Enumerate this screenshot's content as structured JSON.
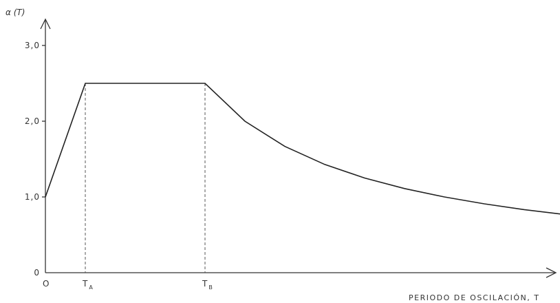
{
  "chart_data": {
    "type": "line",
    "title": "",
    "ylabel": "α (T)",
    "xlabel": "PERIODO DE OSCILACIÓN, T",
    "ylim": [
      0,
      3.4
    ],
    "y_ticks": [
      {
        "value": 0,
        "label": "0"
      },
      {
        "value": 1,
        "label": "1,0"
      },
      {
        "value": 2,
        "label": "2,0"
      },
      {
        "value": 3,
        "label": "3,0"
      }
    ],
    "x_ticks": [
      {
        "value": 0,
        "label": "O"
      },
      {
        "value": 0.1,
        "label": "T",
        "sub": "A"
      },
      {
        "value": 0.4,
        "label": "T",
        "sub": "B"
      }
    ],
    "series": [
      {
        "x": [
          0,
          0.1,
          0.4,
          0.5,
          0.6,
          0.7,
          0.8,
          0.9,
          1.0,
          1.1,
          1.2,
          1.3
        ],
        "y": [
          1.0,
          2.5,
          2.5,
          2.0,
          1.667,
          1.429,
          1.25,
          1.111,
          1.0,
          0.909,
          0.833,
          0.769
        ]
      }
    ],
    "vertical_guides": [
      0.1,
      0.4
    ],
    "grid": false
  }
}
